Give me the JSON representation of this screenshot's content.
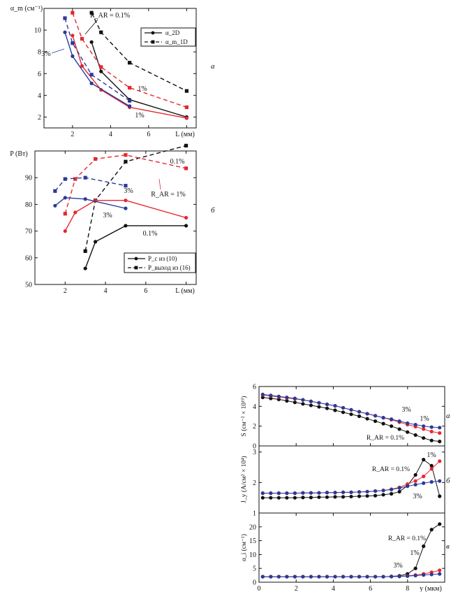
{
  "figure": {
    "chart_a": {
      "panel_letter": "а"
    },
    "chart_b": {
      "panel_letter": "б"
    },
    "chart_r": {
      "panel_letters": [
        "а",
        "б",
        "в"
      ]
    }
  },
  "colors": {
    "black": "#111111",
    "red": "#e8262f",
    "blue": "#2a3a9a"
  },
  "chart_data": [
    {
      "id": "chart_a",
      "type": "line",
      "ylabel": "α_m (см⁻¹)",
      "xlabel": "L (мм)",
      "xlim": [
        0.5,
        8.5
      ],
      "ylim": [
        1.0,
        12.0
      ],
      "xticks": [
        2,
        4,
        6,
        8
      ],
      "xtick_labels": [
        "2",
        "4",
        "6",
        ""
      ],
      "yticks": [
        2,
        4,
        6,
        8,
        10
      ],
      "legend": {
        "position": "top-right",
        "entries": [
          {
            "label": "α_2D",
            "marker": "circle",
            "style": "solid"
          },
          {
            "label": "α_m_1D",
            "marker": "square",
            "style": "dashed"
          }
        ]
      },
      "annotations": [
        "R_AR = 0.1%",
        "1%",
        "1%",
        "3%"
      ],
      "series": [
        {
          "color": "black",
          "style": "solid",
          "marker": "circle",
          "x": [
            3.0,
            3.5,
            5.0,
            8.0
          ],
          "y": [
            8.9,
            6.2,
            3.6,
            2.0
          ]
        },
        {
          "color": "black",
          "style": "dashed",
          "marker": "square",
          "x": [
            3.0,
            3.5,
            5.0,
            8.0
          ],
          "y": [
            11.6,
            9.8,
            7.0,
            4.4
          ]
        },
        {
          "color": "red",
          "style": "solid",
          "marker": "circle",
          "x": [
            2.0,
            2.5,
            3.5,
            5.0,
            8.0
          ],
          "y": [
            9.5,
            6.7,
            4.5,
            2.9,
            1.9
          ]
        },
        {
          "color": "red",
          "style": "dashed",
          "marker": "square",
          "x": [
            2.0,
            2.5,
            3.5,
            5.0,
            8.0
          ],
          "y": [
            11.6,
            9.2,
            6.6,
            4.7,
            2.9
          ]
        },
        {
          "color": "blue",
          "style": "solid",
          "marker": "circle",
          "x": [
            1.6,
            2.0,
            3.0,
            5.0
          ],
          "y": [
            9.8,
            7.6,
            5.1,
            3.0
          ]
        },
        {
          "color": "blue",
          "style": "dashed",
          "marker": "square",
          "x": [
            1.6,
            2.0,
            3.0,
            5.0
          ],
          "y": [
            11.1,
            8.8,
            5.9,
            3.5
          ]
        }
      ]
    },
    {
      "id": "chart_b",
      "type": "line",
      "ylabel": "P (Вт)",
      "xlabel": "L (мм)",
      "xlim": [
        0.5,
        8.5
      ],
      "ylim": [
        50,
        100
      ],
      "xticks": [
        2,
        4,
        6,
        8
      ],
      "xtick_labels": [
        "2",
        "4",
        "6",
        ""
      ],
      "yticks": [
        50,
        60,
        70,
        80,
        90
      ],
      "legend": {
        "position": "bottom-right",
        "entries": [
          {
            "label": "P_c из (10)",
            "marker": "circle",
            "style": "solid"
          },
          {
            "label": "P_выход из (16)",
            "marker": "square",
            "style": "dashed"
          }
        ]
      },
      "annotations": [
        "0.1%",
        "3%",
        "R_AR = 1%",
        "3%",
        "0.1%"
      ],
      "series": [
        {
          "color": "black",
          "style": "solid",
          "marker": "circle",
          "x": [
            3.0,
            3.5,
            5.0,
            8.0
          ],
          "y": [
            56.0,
            66.0,
            72.0,
            72.0
          ]
        },
        {
          "color": "black",
          "style": "dashed",
          "marker": "square",
          "x": [
            3.0,
            3.5,
            5.0,
            8.0
          ],
          "y": [
            62.5,
            81.5,
            96.0,
            102.0
          ]
        },
        {
          "color": "red",
          "style": "solid",
          "marker": "circle",
          "x": [
            2.0,
            2.5,
            3.5,
            5.0,
            8.0
          ],
          "y": [
            70.0,
            77.0,
            81.5,
            81.5,
            75.0
          ]
        },
        {
          "color": "red",
          "style": "dashed",
          "marker": "square",
          "x": [
            2.0,
            2.5,
            3.5,
            5.0,
            8.0
          ],
          "y": [
            76.5,
            89.5,
            97.0,
            98.5,
            93.5
          ]
        },
        {
          "color": "blue",
          "style": "solid",
          "marker": "circle",
          "x": [
            1.5,
            2.0,
            3.0,
            5.0
          ],
          "y": [
            79.5,
            82.5,
            82.0,
            78.5
          ]
        },
        {
          "color": "blue",
          "style": "dashed",
          "marker": "square",
          "x": [
            1.5,
            2.0,
            3.0,
            5.0
          ],
          "y": [
            85.0,
            89.5,
            90.0,
            87.0
          ]
        }
      ]
    },
    {
      "id": "chart_r1",
      "type": "line",
      "ylabel": "S (см⁻² × 10¹⁹)",
      "xlim": [
        0,
        10
      ],
      "ylim": [
        0,
        6
      ],
      "xticks": [
        0,
        2,
        4,
        6,
        8
      ],
      "yticks": [
        0,
        2,
        4,
        6
      ],
      "annotations": [
        "3%",
        "1%",
        "R_AR = 0.1%"
      ],
      "series": [
        {
          "color": "black",
          "marker": "circle",
          "y": [
            4.9,
            4.8,
            4.7,
            4.55,
            4.4,
            4.25,
            4.1,
            3.95,
            3.8,
            3.6,
            3.4,
            3.2,
            3.0,
            2.75,
            2.5,
            2.25,
            2.0,
            1.7,
            1.4,
            1.1,
            0.8,
            0.55,
            0.45
          ]
        },
        {
          "color": "red",
          "marker": "circle",
          "y": [
            5.15,
            5.05,
            4.95,
            4.85,
            4.75,
            4.65,
            4.5,
            4.35,
            4.2,
            4.05,
            3.85,
            3.65,
            3.45,
            3.25,
            3.05,
            2.85,
            2.65,
            2.4,
            2.15,
            1.95,
            1.7,
            1.45,
            1.3
          ]
        },
        {
          "color": "blue",
          "marker": "circle",
          "y": [
            5.2,
            5.1,
            5.0,
            4.9,
            4.8,
            4.65,
            4.5,
            4.35,
            4.2,
            4.05,
            3.85,
            3.65,
            3.45,
            3.25,
            3.05,
            2.85,
            2.7,
            2.5,
            2.3,
            2.15,
            2.0,
            1.9,
            1.85
          ]
        }
      ]
    },
    {
      "id": "chart_r2",
      "type": "line",
      "ylabel": "J_y (A/см² × 10⁴)",
      "xlim": [
        0,
        10
      ],
      "ylim": [
        1,
        3.2
      ],
      "yticks": [
        1,
        2,
        3
      ],
      "annotations": [
        "1%",
        "R_AR = 0.1%",
        "3%"
      ],
      "series": [
        {
          "color": "black",
          "marker": "circle",
          "y": [
            1.5,
            1.5,
            1.5,
            1.5,
            1.5,
            1.51,
            1.51,
            1.52,
            1.52,
            1.53,
            1.53,
            1.54,
            1.55,
            1.56,
            1.57,
            1.6,
            1.63,
            1.7,
            1.9,
            2.25,
            2.75,
            2.55,
            1.55
          ]
        },
        {
          "color": "red",
          "marker": "circle",
          "y": [
            1.65,
            1.65,
            1.65,
            1.65,
            1.65,
            1.66,
            1.66,
            1.66,
            1.67,
            1.67,
            1.68,
            1.68,
            1.69,
            1.7,
            1.72,
            1.74,
            1.78,
            1.84,
            1.95,
            2.05,
            2.2,
            2.45,
            2.7
          ]
        },
        {
          "color": "blue",
          "marker": "circle",
          "y": [
            1.65,
            1.65,
            1.65,
            1.65,
            1.65,
            1.66,
            1.66,
            1.66,
            1.67,
            1.67,
            1.68,
            1.68,
            1.69,
            1.7,
            1.72,
            1.74,
            1.77,
            1.82,
            1.88,
            1.93,
            1.98,
            2.02,
            2.05
          ]
        }
      ]
    },
    {
      "id": "chart_r3",
      "type": "line",
      "ylabel": "α_i (см⁻¹)",
      "xlabel": "y (мкм)",
      "xlim": [
        0,
        10
      ],
      "ylim": [
        0,
        25
      ],
      "xticks": [
        0,
        2,
        4,
        6,
        8
      ],
      "xtick_labels": [
        "0",
        "2",
        "4",
        "6",
        "8"
      ],
      "yticks": [
        0,
        5,
        10,
        15,
        20
      ],
      "annotations": [
        "R_AR = 0.1%",
        "1%",
        "3%"
      ],
      "series": [
        {
          "color": "black",
          "marker": "circle",
          "y": [
            2,
            2,
            2,
            2,
            2,
            2,
            2,
            2,
            2,
            2,
            2,
            2,
            2,
            2,
            2,
            2,
            2.1,
            2.3,
            3,
            5,
            13,
            19,
            21
          ]
        },
        {
          "color": "red",
          "marker": "circle",
          "y": [
            2,
            2,
            2,
            2,
            2,
            2,
            2,
            2,
            2,
            2,
            2,
            2,
            2,
            2,
            2,
            2,
            2.05,
            2.1,
            2.3,
            2.6,
            3.0,
            3.6,
            4.3
          ]
        },
        {
          "color": "blue",
          "marker": "circle",
          "y": [
            2,
            2,
            2,
            2,
            2,
            2,
            2,
            2,
            2,
            2,
            2,
            2,
            2,
            2,
            2,
            2,
            2.05,
            2.1,
            2.2,
            2.4,
            2.6,
            2.8,
            3.0
          ]
        }
      ]
    }
  ]
}
